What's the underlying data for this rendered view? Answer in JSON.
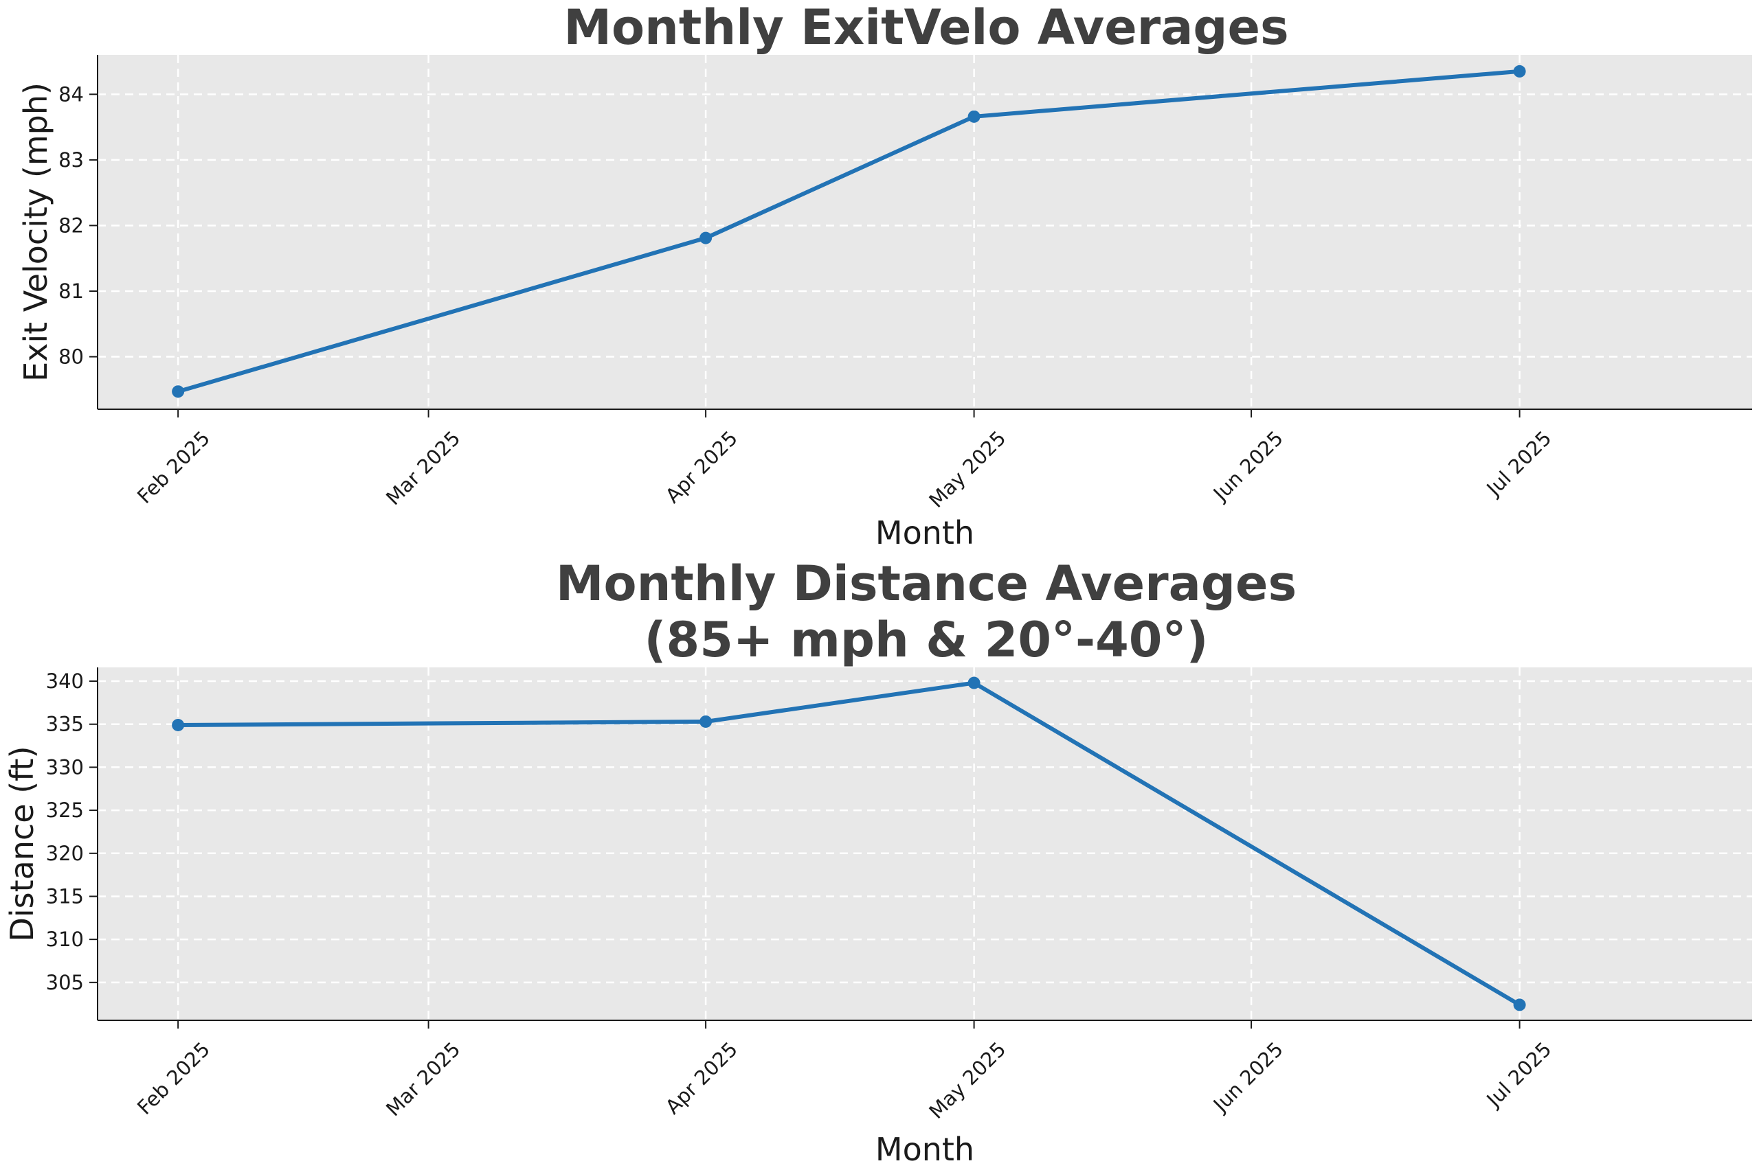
{
  "colors": {
    "series": "#2273b5",
    "plot_bg": "#e8e8e8",
    "title": "#404040"
  },
  "chart_data": [
    {
      "type": "line",
      "title": "Monthly ExitVelo Averages",
      "xlabel": "Month",
      "ylabel": "Exit Velocity (mph)",
      "x_ticks": [
        "Feb 2025",
        "Mar 2025",
        "Apr 2025",
        "May 2025",
        "Jun 2025",
        "Jul 2025"
      ],
      "y_ticks": [
        80,
        81,
        82,
        83,
        84
      ],
      "xlim": [
        "2025-01-23",
        "2025-07-27"
      ],
      "ylim": [
        79.2,
        84.6
      ],
      "grid": true,
      "series": [
        {
          "x": [
            "2025-02-01",
            "2025-04-01",
            "2025-05-01",
            "2025-07-01"
          ],
          "values": [
            79.47,
            81.81,
            83.66,
            84.35
          ]
        }
      ]
    },
    {
      "type": "line",
      "title": "Monthly Distance Averages\n(85+ mph & 20°-40°)",
      "title_lines": [
        "Monthly Distance Averages",
        "(85+ mph & 20°-40°)"
      ],
      "xlabel": "Month",
      "ylabel": "Distance (ft)",
      "x_ticks": [
        "Feb 2025",
        "Mar 2025",
        "Apr 2025",
        "May 2025",
        "Jun 2025",
        "Jul 2025"
      ],
      "y_ticks": [
        305,
        310,
        315,
        320,
        325,
        330,
        335,
        340
      ],
      "xlim": [
        "2025-01-23",
        "2025-07-27"
      ],
      "ylim": [
        300.6,
        341.6
      ],
      "grid": true,
      "series": [
        {
          "x": [
            "2025-02-01",
            "2025-04-01",
            "2025-05-01",
            "2025-07-01"
          ],
          "values": [
            334.9,
            335.3,
            339.8,
            302.4
          ]
        }
      ]
    }
  ]
}
